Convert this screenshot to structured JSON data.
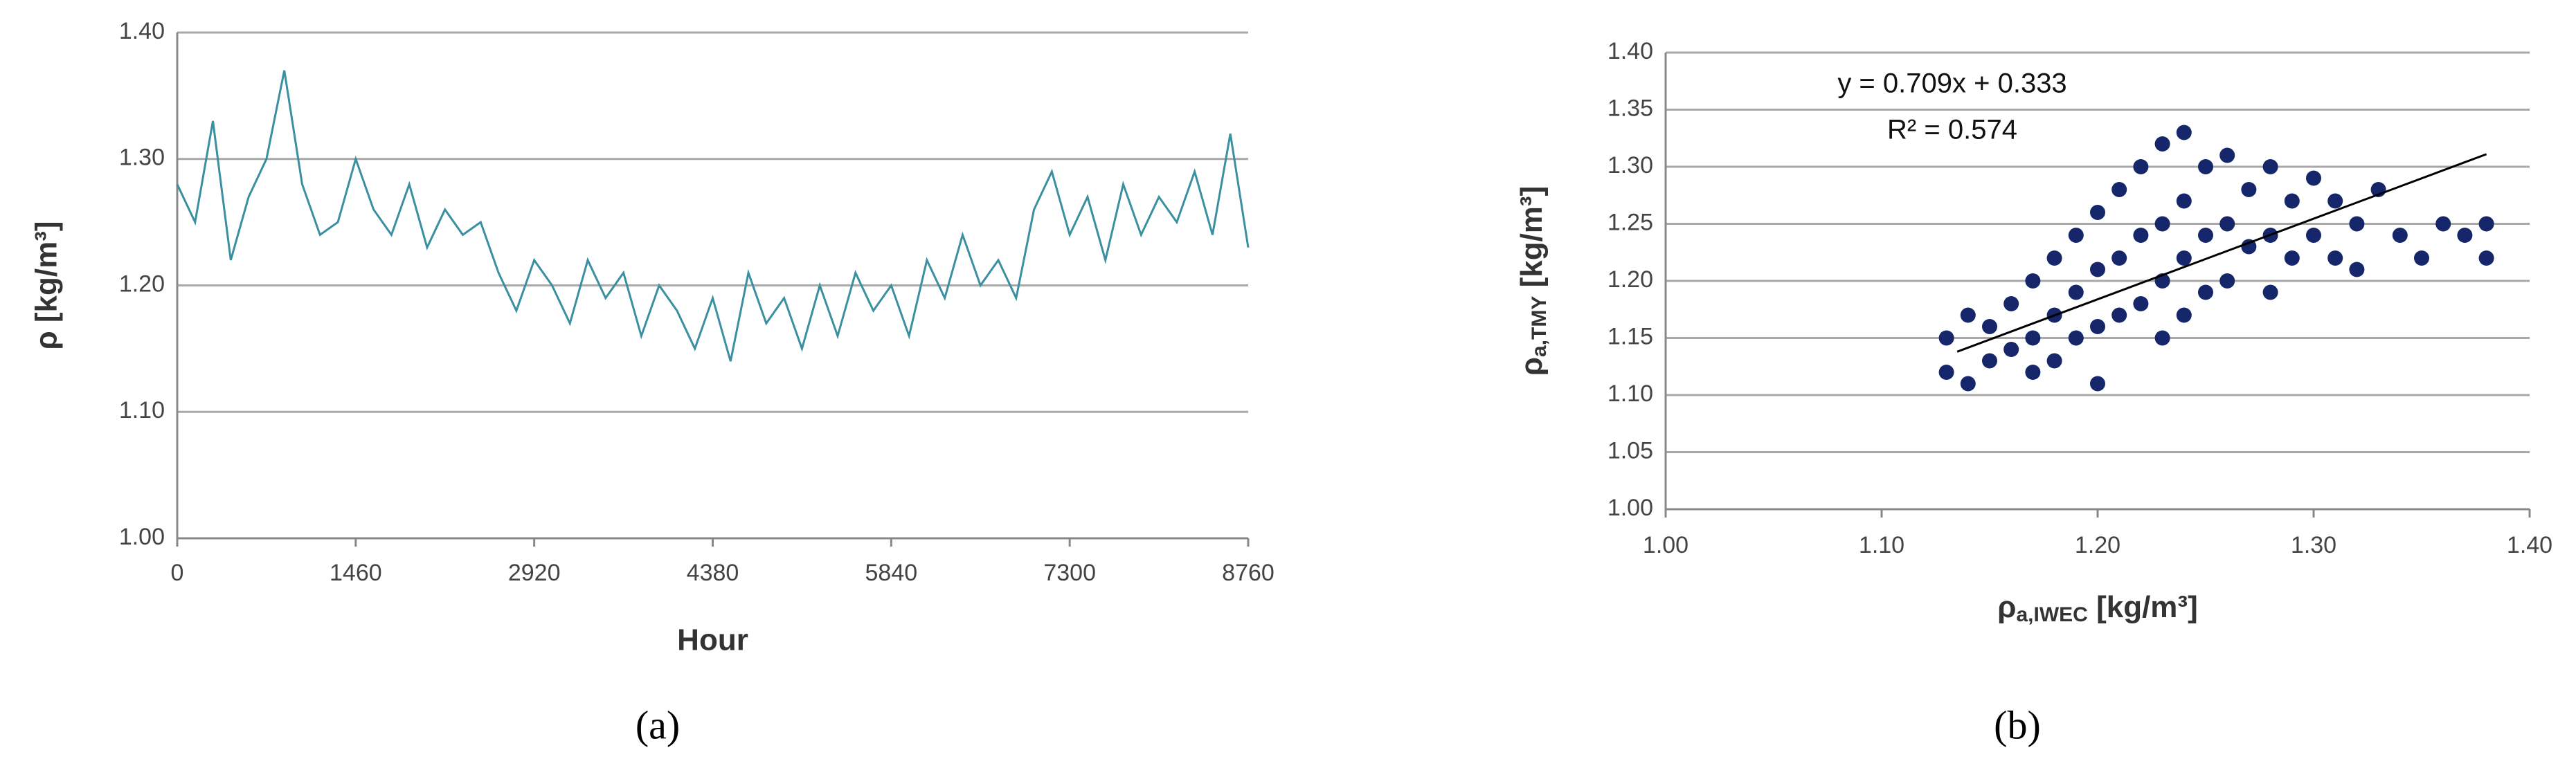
{
  "chart_data": [
    {
      "type": "line",
      "caption": "(a)",
      "x_label": "Hour",
      "y_label": "ρ [kg/m³]",
      "color": "#3a8fa0",
      "grid": true,
      "xlim": [
        0,
        8760
      ],
      "xticks": [
        0,
        1460,
        2920,
        4380,
        5840,
        7300,
        8760
      ],
      "ylim": [
        1.0,
        1.4
      ],
      "yticks": [
        {
          "value": 1.0,
          "label": "1.00"
        },
        {
          "value": 1.1,
          "label": "1.10"
        },
        {
          "value": 1.2,
          "label": "1.20"
        },
        {
          "value": 1.3,
          "label": "1.30"
        },
        {
          "value": 1.4,
          "label": "1.40"
        }
      ],
      "x": [
        0,
        146,
        292,
        438,
        584,
        730,
        876,
        1022,
        1168,
        1314,
        1460,
        1606,
        1752,
        1898,
        2044,
        2190,
        2336,
        2482,
        2628,
        2774,
        2920,
        3066,
        3212,
        3358,
        3504,
        3650,
        3796,
        3942,
        4088,
        4234,
        4380,
        4526,
        4672,
        4818,
        4964,
        5110,
        5256,
        5402,
        5548,
        5694,
        5840,
        5986,
        6132,
        6278,
        6424,
        6570,
        6716,
        6862,
        7008,
        7154,
        7300,
        7446,
        7592,
        7738,
        7884,
        8030,
        8176,
        8322,
        8468,
        8614,
        8760
      ],
      "values": [
        1.28,
        1.25,
        1.33,
        1.22,
        1.27,
        1.3,
        1.37,
        1.28,
        1.24,
        1.25,
        1.3,
        1.26,
        1.24,
        1.28,
        1.23,
        1.26,
        1.24,
        1.25,
        1.21,
        1.18,
        1.22,
        1.2,
        1.17,
        1.22,
        1.19,
        1.21,
        1.16,
        1.2,
        1.18,
        1.15,
        1.19,
        1.14,
        1.21,
        1.17,
        1.19,
        1.15,
        1.2,
        1.16,
        1.21,
        1.18,
        1.2,
        1.16,
        1.22,
        1.19,
        1.24,
        1.2,
        1.22,
        1.19,
        1.26,
        1.29,
        1.24,
        1.27,
        1.22,
        1.28,
        1.24,
        1.27,
        1.25,
        1.29,
        1.24,
        1.32,
        1.23
      ]
    },
    {
      "type": "scatter",
      "caption": "(b)",
      "x_label": {
        "symbol": "ρ",
        "subscript": "a,IWEC",
        "unit": " [kg/m³]"
      },
      "y_label": {
        "symbol": "ρ",
        "subscript": "a,TMY",
        "unit": " [kg/m³]"
      },
      "annotations": [
        "y = 0.709x + 0.333",
        "R² = 0.574"
      ],
      "color": "#16266a",
      "grid": true,
      "xlim": [
        1.0,
        1.4
      ],
      "xticks": [
        {
          "value": 1.0,
          "label": "1.00"
        },
        {
          "value": 1.1,
          "label": "1.10"
        },
        {
          "value": 1.2,
          "label": "1.20"
        },
        {
          "value": 1.3,
          "label": "1.30"
        },
        {
          "value": 1.4,
          "label": "1.40"
        }
      ],
      "ylim": [
        1.0,
        1.4
      ],
      "yticks": [
        {
          "value": 1.0,
          "label": "1.00"
        },
        {
          "value": 1.05,
          "label": "1.05"
        },
        {
          "value": 1.1,
          "label": "1.10"
        },
        {
          "value": 1.15,
          "label": "1.15"
        },
        {
          "value": 1.2,
          "label": "1.20"
        },
        {
          "value": 1.25,
          "label": "1.25"
        },
        {
          "value": 1.3,
          "label": "1.30"
        },
        {
          "value": 1.35,
          "label": "1.35"
        },
        {
          "value": 1.4,
          "label": "1.40"
        }
      ],
      "x": [
        1.13,
        1.13,
        1.14,
        1.14,
        1.15,
        1.15,
        1.16,
        1.16,
        1.17,
        1.17,
        1.17,
        1.18,
        1.18,
        1.18,
        1.19,
        1.19,
        1.19,
        1.2,
        1.2,
        1.2,
        1.2,
        1.21,
        1.21,
        1.21,
        1.22,
        1.22,
        1.22,
        1.23,
        1.23,
        1.23,
        1.23,
        1.24,
        1.24,
        1.24,
        1.24,
        1.25,
        1.25,
        1.25,
        1.26,
        1.26,
        1.26,
        1.27,
        1.27,
        1.28,
        1.28,
        1.28,
        1.29,
        1.29,
        1.3,
        1.3,
        1.31,
        1.31,
        1.32,
        1.32,
        1.33,
        1.34,
        1.35,
        1.36,
        1.37,
        1.38,
        1.38
      ],
      "values": [
        1.15,
        1.12,
        1.17,
        1.11,
        1.16,
        1.13,
        1.18,
        1.14,
        1.2,
        1.15,
        1.12,
        1.22,
        1.17,
        1.13,
        1.24,
        1.19,
        1.15,
        1.26,
        1.21,
        1.16,
        1.11,
        1.28,
        1.22,
        1.17,
        1.3,
        1.24,
        1.18,
        1.32,
        1.25,
        1.2,
        1.15,
        1.33,
        1.27,
        1.22,
        1.17,
        1.3,
        1.24,
        1.19,
        1.31,
        1.25,
        1.2,
        1.28,
        1.23,
        1.3,
        1.24,
        1.19,
        1.27,
        1.22,
        1.29,
        1.24,
        1.27,
        1.22,
        1.25,
        1.21,
        1.28,
        1.24,
        1.22,
        1.25,
        1.24,
        1.22,
        1.25
      ],
      "trendline": {
        "x": [
          1.135,
          1.38
        ],
        "values": [
          1.138,
          1.311
        ]
      }
    }
  ]
}
